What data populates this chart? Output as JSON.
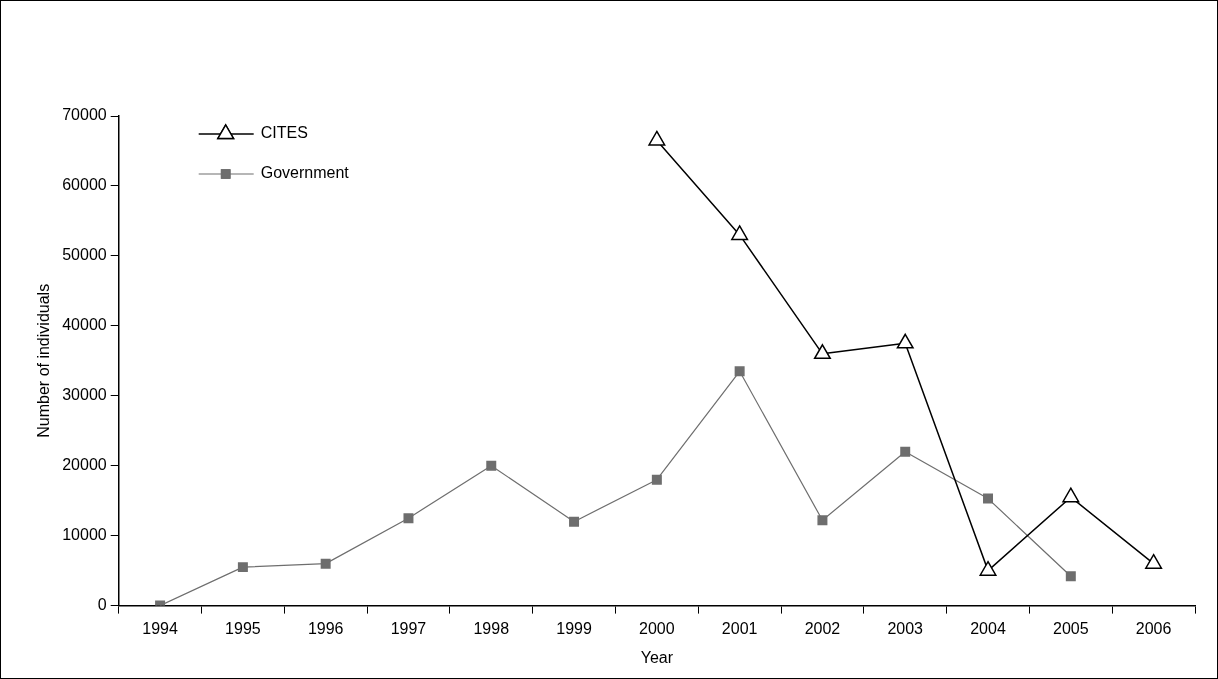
{
  "chart_data": {
    "type": "line",
    "xlabel": "Year",
    "ylabel": "Number of individuals",
    "categories": [
      "1994",
      "1995",
      "1996",
      "1997",
      "1998",
      "1999",
      "2000",
      "2001",
      "2002",
      "2003",
      "2004",
      "2005",
      "2006"
    ],
    "series": [
      {
        "name": "CITES",
        "color": "#000000",
        "marker": "triangle",
        "values": [
          null,
          null,
          null,
          null,
          null,
          null,
          66500,
          53000,
          36000,
          37500,
          5000,
          15500,
          6000
        ]
      },
      {
        "name": "Government",
        "color": "#6e6e6e",
        "marker": "square",
        "values": [
          0,
          5500,
          6000,
          12500,
          20000,
          12000,
          18000,
          33500,
          12200,
          22000,
          15300,
          4200,
          null
        ]
      }
    ],
    "ylim": [
      0,
      70000
    ],
    "yticks": [
      0,
      10000,
      20000,
      30000,
      40000,
      50000,
      60000,
      70000
    ],
    "grid": false,
    "legend": "top left",
    "line_style": "solid"
  }
}
